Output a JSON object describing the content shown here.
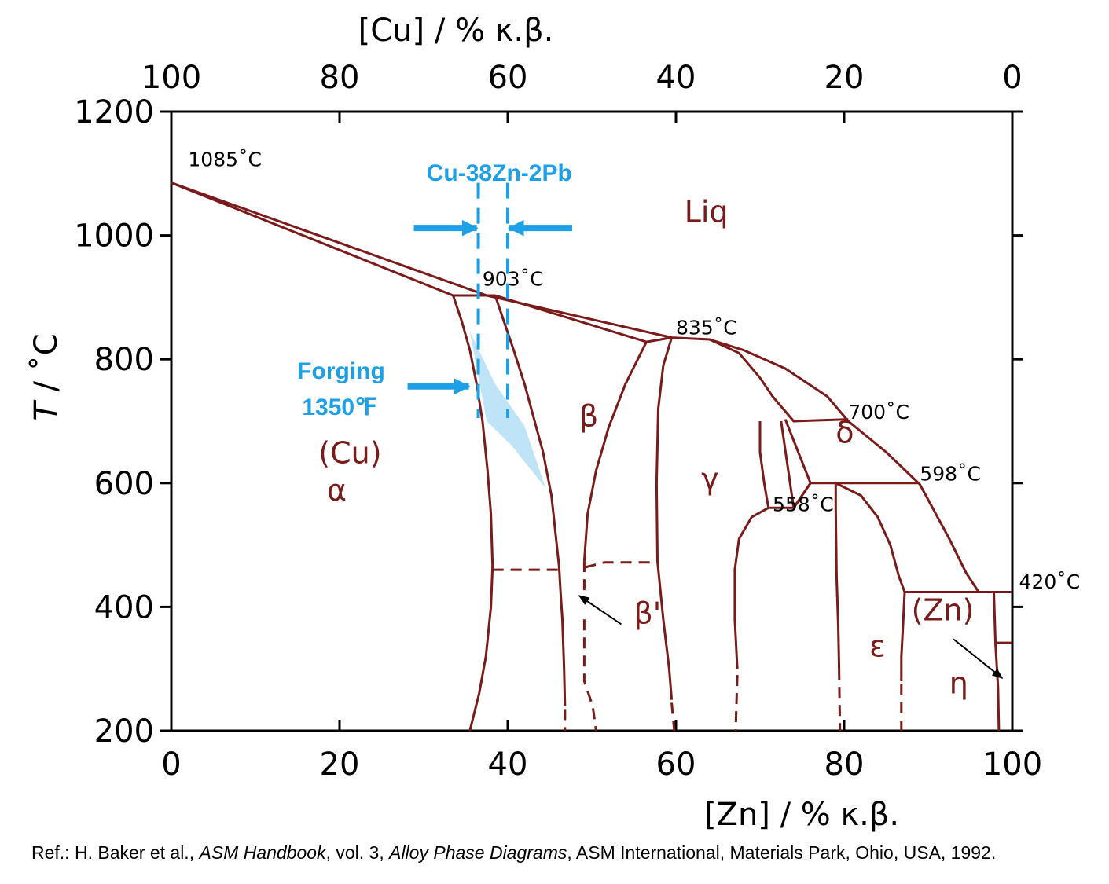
{
  "chart_data": {
    "type": "phase-diagram",
    "xlabel": "[Zn] / % κ.β.",
    "x2label": "[Cu] / % κ.β.",
    "ylabel_italic": "T",
    "ylabel_rest": " / ˚C",
    "xlim": [
      0,
      100
    ],
    "ylim": [
      200,
      1200
    ],
    "x_ticks": [
      "0",
      "20",
      "40",
      "60",
      "80",
      "100"
    ],
    "x2_ticks": [
      "100",
      "80",
      "60",
      "40",
      "20",
      "0"
    ],
    "y_ticks": [
      "200",
      "400",
      "600",
      "800",
      "1000",
      "1200"
    ],
    "temperature_labels": [
      {
        "text": "1085˚C",
        "x": 2,
        "y": 1112
      },
      {
        "text": "903˚C",
        "x": 37,
        "y": 919
      },
      {
        "text": "835˚C",
        "x": 60,
        "y": 840
      },
      {
        "text": "700˚C",
        "x": 80.5,
        "y": 704
      },
      {
        "text": "598˚C",
        "x": 89,
        "y": 604
      },
      {
        "text": "558˚C",
        "x": 71.5,
        "y": 555
      },
      {
        "text": "420˚C",
        "x": 100.8,
        "y": 430
      }
    ],
    "phase_labels": [
      {
        "text": "Liq",
        "x": 61,
        "y": 1022
      },
      {
        "text": "(Cu)",
        "x": 17.5,
        "y": 632
      },
      {
        "text": "α",
        "x": 18.5,
        "y": 572
      },
      {
        "text": "β",
        "x": 48.5,
        "y": 692
      },
      {
        "text": "γ",
        "x": 63,
        "y": 590
      },
      {
        "text": "δ",
        "x": 79,
        "y": 665
      },
      {
        "text": "β'",
        "x": 55,
        "y": 373
      },
      {
        "text": "ε",
        "x": 83,
        "y": 320
      },
      {
        "text": "(Zn)",
        "x": 88,
        "y": 378
      },
      {
        "text": "η",
        "x": 92.5,
        "y": 260
      }
    ],
    "solid_lines": [
      [
        [
          0,
          1085
        ],
        [
          33.5,
          903
        ],
        [
          38.5,
          903
        ],
        [
          56.5,
          828
        ],
        [
          59.5,
          835
        ]
      ],
      [
        [
          0,
          1085
        ],
        [
          37.5,
          903
        ]
      ],
      [
        [
          37.5,
          903
        ],
        [
          59.5,
          835
        ],
        [
          64,
          832
        ],
        [
          68,
          815
        ],
        [
          73,
          785
        ],
        [
          78,
          740
        ],
        [
          80.5,
          700
        ],
        [
          85,
          650
        ],
        [
          89,
          598
        ],
        [
          92.5,
          510
        ],
        [
          94.5,
          455
        ],
        [
          96,
          424
        ],
        [
          98,
          424
        ],
        [
          100,
          424
        ]
      ],
      [
        [
          33.5,
          903
        ],
        [
          34.5,
          863
        ],
        [
          35.5,
          815
        ],
        [
          36.3,
          760
        ],
        [
          37,
          700
        ],
        [
          37.6,
          620
        ],
        [
          38,
          550
        ],
        [
          38.2,
          466
        ],
        [
          38,
          400
        ],
        [
          37.4,
          320
        ],
        [
          36.6,
          260
        ],
        [
          35.5,
          200
        ]
      ],
      [
        [
          38.5,
          903
        ],
        [
          39.5,
          863
        ],
        [
          40.7,
          815
        ],
        [
          42,
          760
        ],
        [
          43.2,
          700
        ],
        [
          44.2,
          650
        ],
        [
          45.2,
          580
        ],
        [
          46.1,
          466
        ],
        [
          46.3,
          420
        ],
        [
          46.5,
          380
        ],
        [
          46.7,
          300
        ],
        [
          46.8,
          240
        ]
      ],
      [
        [
          56.5,
          828
        ],
        [
          54,
          760
        ],
        [
          52,
          690
        ],
        [
          50.5,
          620
        ],
        [
          49.5,
          550
        ],
        [
          49.1,
          474
        ]
      ],
      [
        [
          59.5,
          835
        ],
        [
          58.5,
          790
        ],
        [
          57.9,
          720
        ],
        [
          57.7,
          600
        ],
        [
          57.8,
          474
        ],
        [
          58.5,
          380
        ],
        [
          59.2,
          300
        ],
        [
          59.5,
          250
        ]
      ],
      [
        [
          64,
          832
        ],
        [
          67.5,
          810
        ],
        [
          70,
          770
        ],
        [
          71.5,
          740
        ],
        [
          74,
          700
        ],
        [
          80.5,
          703
        ]
      ],
      [
        [
          70,
          700
        ],
        [
          70,
          650
        ],
        [
          70.5,
          600
        ],
        [
          71,
          560
        ],
        [
          74,
          560
        ]
      ],
      [
        [
          72.5,
          700
        ],
        [
          74,
          560
        ]
      ],
      [
        [
          73,
          703
        ],
        [
          76,
          600
        ],
        [
          74,
          560
        ]
      ],
      [
        [
          74,
          560
        ],
        [
          76,
          600
        ],
        [
          89,
          600
        ]
      ],
      [
        [
          71,
          560
        ],
        [
          69,
          545
        ],
        [
          67.5,
          510
        ],
        [
          67,
          460
        ],
        [
          67,
          380
        ],
        [
          67.3,
          300
        ]
      ],
      [
        [
          79,
          600
        ],
        [
          79,
          560
        ],
        [
          79.1,
          450
        ],
        [
          79.3,
          370
        ],
        [
          79.4,
          300
        ]
      ],
      [
        [
          79,
          600
        ],
        [
          82,
          580
        ],
        [
          84,
          545
        ],
        [
          85.5,
          500
        ],
        [
          86.5,
          450
        ],
        [
          87.2,
          424
        ],
        [
          96,
          424
        ]
      ],
      [
        [
          87.2,
          424
        ],
        [
          87,
          370
        ],
        [
          86.8,
          320
        ],
        [
          86.8,
          280
        ]
      ],
      [
        [
          97.8,
          424
        ],
        [
          98,
          340
        ],
        [
          98.3,
          270
        ],
        [
          98.4,
          200
        ]
      ],
      [
        [
          98.2,
          342
        ],
        [
          100,
          342
        ]
      ]
    ],
    "dashed_lines": [
      [
        [
          38.2,
          460
        ],
        [
          46.1,
          460
        ]
      ],
      [
        [
          49.2,
          464
        ],
        [
          51.5,
          472
        ],
        [
          57.8,
          472
        ]
      ],
      [
        [
          46.8,
          235
        ],
        [
          46.8,
          200
        ]
      ],
      [
        [
          49.1,
          474
        ],
        [
          49.1,
          420
        ]
      ],
      [
        [
          49.1,
          380
        ],
        [
          49.1,
          280
        ],
        [
          50.1,
          240
        ],
        [
          50.5,
          200
        ]
      ],
      [
        [
          59.5,
          245
        ],
        [
          59.8,
          200
        ]
      ],
      [
        [
          67.3,
          290
        ],
        [
          67.1,
          200
        ]
      ],
      [
        [
          79.4,
          300
        ],
        [
          79.5,
          200
        ]
      ],
      [
        [
          86.8,
          275
        ],
        [
          86.8,
          200
        ]
      ]
    ],
    "annotation_arrows": [
      {
        "from": [
          53.5,
          372
        ],
        "to": [
          48.5,
          418
        ]
      },
      {
        "from": [
          93,
          348
        ],
        "to": [
          98.8,
          285
        ]
      }
    ],
    "shaded_region": [
      [
        35.5,
        845
      ],
      [
        38.5,
        760
      ],
      [
        42,
        692
      ],
      [
        44.5,
        592
      ],
      [
        40.5,
        660
      ],
      [
        37.5,
        700
      ]
    ],
    "overlay": {
      "alloy_label": "Cu-38Zn-2Pb",
      "alloy_bounds": [
        36.5,
        40
      ],
      "alloy_line_top_y": 1085,
      "alloy_line_bottom_y": 705,
      "alloy_arrow_y": 1012,
      "forging_label_1": "Forging",
      "forging_label_2": "1350℉",
      "forging_arrow_y": 760,
      "color": "#1ea0e8"
    }
  },
  "reference": {
    "prefix": "Ref.: H. Baker et al., ",
    "book": "ASM Handbook",
    "mid": ", vol. 3, ",
    "volume_title": "Alloy Phase Diagrams",
    "suffix": ", ASM International, Materials Park, Ohio, USA, 1992."
  }
}
